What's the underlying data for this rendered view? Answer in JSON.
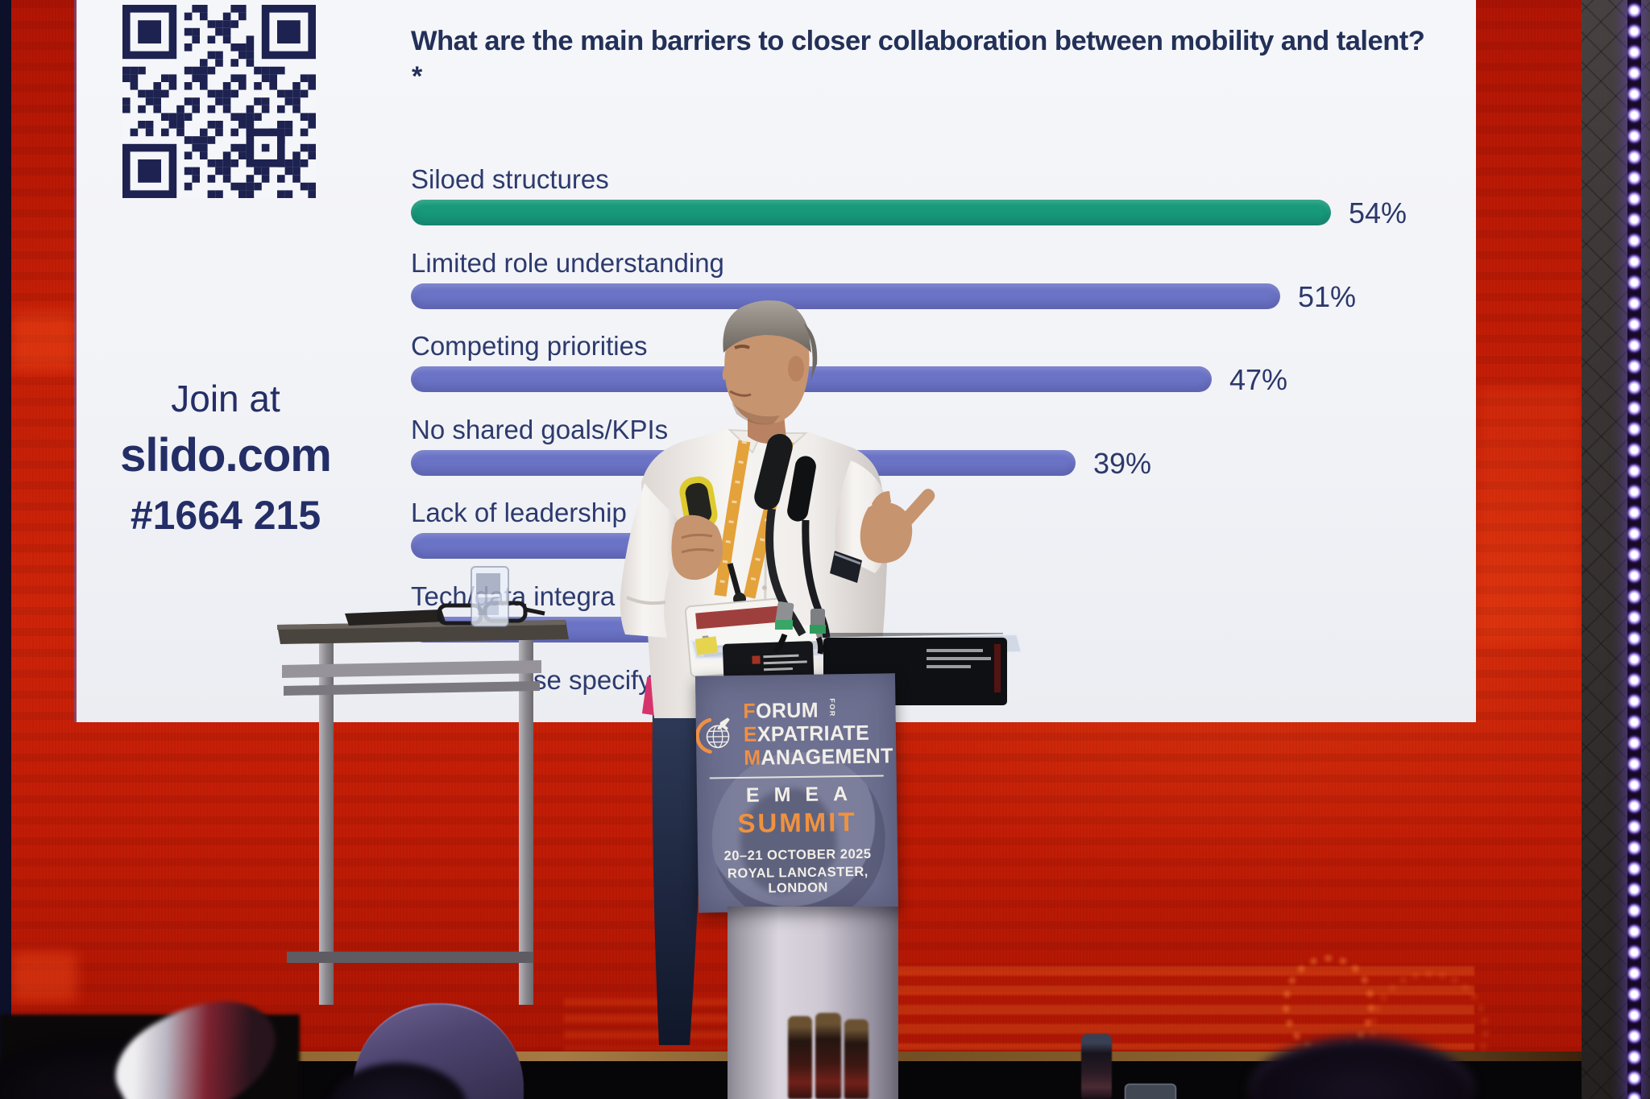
{
  "slide": {
    "join_heading": "Join at",
    "join_domain": "slido.com",
    "join_code": "#1664 215",
    "question": "What are the main barriers to closer collaboration between mobility and talent?",
    "question_note": "*",
    "qr_alt": "QR code to join the Slido poll"
  },
  "chart_data": {
    "type": "bar",
    "orientation": "horizontal",
    "title": "What are the main barriers to closer collaboration between mobility and talent? *",
    "value_unit": "%",
    "legend": "none",
    "rows": [
      {
        "label": "Siloed structures",
        "value": 54,
        "value_label": "54%",
        "color": "#17997a"
      },
      {
        "label": "Limited role understanding",
        "value": 51,
        "value_label": "51%",
        "color": "#6b73c6"
      },
      {
        "label": "Competing priorities",
        "value": 47,
        "value_label": "47%",
        "color": "#6b73c6"
      },
      {
        "label": "No shared goals/KPIs",
        "value": 39,
        "value_label": "39%",
        "color": "#6b73c6"
      },
      {
        "label": "Lack of leadership",
        "value": null,
        "value_label": "",
        "color": "#6b73c6",
        "visible_bar_pct": 25,
        "occlusion": "bar end and value hidden behind presenter"
      },
      {
        "label": "Tech/data integra",
        "value": null,
        "value_label": "",
        "color": "#6b73c6",
        "visible_bar_pct": 24,
        "occlusion": "label partly hidden by water glass; bar end hidden behind table and presenter"
      },
      {
        "label": "se specify",
        "value": null,
        "value_label": "",
        "color": "#6b73c6",
        "visible_bar_pct": 0,
        "occlusion": "label start and bar hidden behind table and lectern"
      }
    ]
  },
  "podium_sign": {
    "line1_accent": "F",
    "line1_rest": "ORUM",
    "line1_side": "FOR",
    "line2_accent": "E",
    "line2_rest": "XPATRIATE",
    "line3_accent": "M",
    "line3_rest": "ANAGEMENT",
    "region": "EMEA",
    "event": "SUMMIT",
    "date": "20–21 OCTOBER 2025",
    "venue": "ROYAL LANCASTER, LONDON"
  },
  "colors": {
    "slide_text": "#27316a",
    "bar_green": "#17997a",
    "bar_indigo": "#6b73c6",
    "led_wall_red": "#c41d06",
    "sign_background": "#6d7090",
    "sign_orange": "#ef9043",
    "sign_cream": "#f2efe8"
  }
}
